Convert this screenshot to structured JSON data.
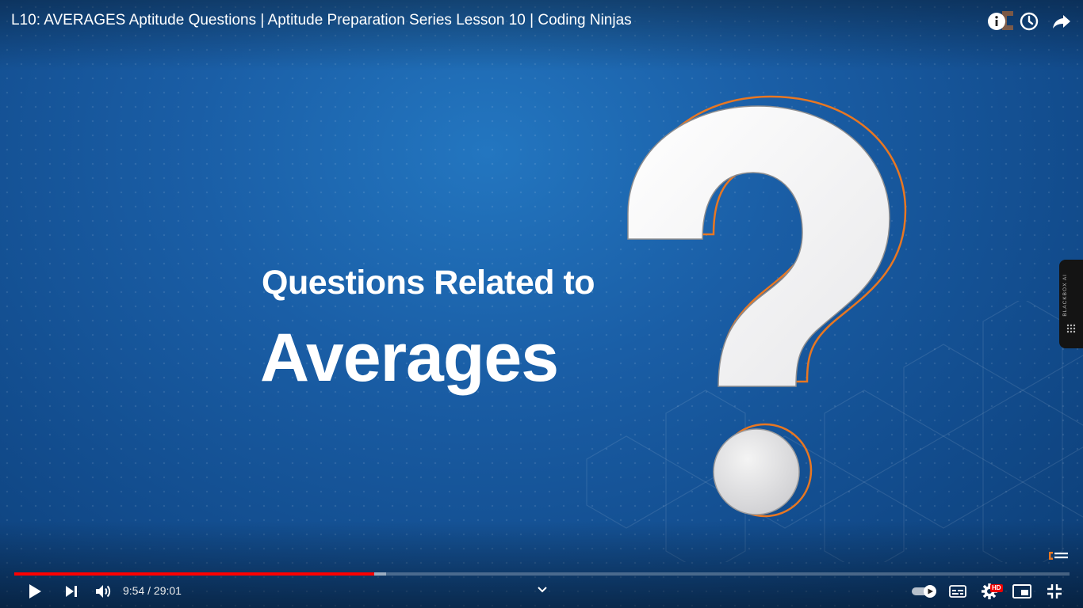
{
  "header": {
    "title": "L10: AVERAGES Aptitude Questions | Aptitude Preparation Series Lesson 10 | Coding Ninjas",
    "logo_text": "CODING NINJAS",
    "icons": [
      "info-icon",
      "watch-later-icon",
      "share-icon"
    ]
  },
  "slide": {
    "line1": "Questions Related to",
    "line2": "Averages",
    "watermark": "CODING NINJAS",
    "accent_orange": "#e87722",
    "background_blue": "#1a5ea6"
  },
  "side_tab": {
    "label": "BLACKBOX AI"
  },
  "player": {
    "current_time": "9:54",
    "duration": "29:01",
    "time_display": "9:54 / 29:01",
    "played_fraction": 0.341,
    "buffered_fraction": 0.352,
    "quality_badge": "HD",
    "progress_color": "#ff0000",
    "controls": {
      "left": [
        "play-icon",
        "next-icon",
        "volume-icon"
      ],
      "center": [
        "chevron-down-icon"
      ],
      "right": [
        "autoplay-toggle-icon",
        "subtitles-icon",
        "settings-icon",
        "miniplayer-icon",
        "exit-fullscreen-icon"
      ]
    }
  }
}
